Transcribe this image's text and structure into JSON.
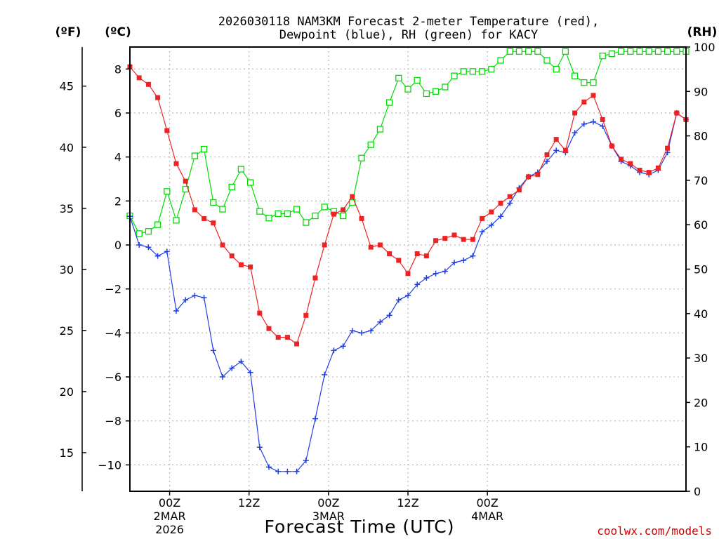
{
  "chart_data": {
    "type": "line",
    "title_line1": "2026030118 NAM3KM Forecast 2-meter Temperature (red),",
    "title_line2": "Dewpoint (blue), RH (green) for KACY",
    "xlabel": "Forecast Time (UTC)",
    "credit": "coolwx.com/models",
    "unit_f": "(ºF)",
    "unit_c": "(ºC)",
    "unit_rh": "(RH)",
    "x_hours_since_start": [
      0,
      84
    ],
    "x_ticks": [
      {
        "hour": 6,
        "label": "00Z",
        "label2": "2MAR",
        "label3": "2026"
      },
      {
        "hour": 18,
        "label": "12Z",
        "label2": "",
        "label3": ""
      },
      {
        "hour": 30,
        "label": "00Z",
        "label2": "3MAR",
        "label3": ""
      },
      {
        "hour": 42,
        "label": "12Z",
        "label2": "",
        "label3": ""
      },
      {
        "hour": 54,
        "label": "00Z",
        "label2": "4MAR",
        "label3": ""
      }
    ],
    "ylim_c": [
      -11.2,
      9.0
    ],
    "ylim_rh": [
      0,
      100
    ],
    "yticks_c": [
      "8",
      "6",
      "4",
      "2",
      "0",
      "−2",
      "−4",
      "−6",
      "−8",
      "−10"
    ],
    "yticks_c_values": [
      8,
      6,
      4,
      2,
      0,
      -2,
      -4,
      -6,
      -8,
      -10
    ],
    "yticks_f": [
      "45",
      "40",
      "35",
      "30",
      "25",
      "20",
      "15"
    ],
    "yticks_f_values": [
      45,
      40,
      35,
      30,
      25,
      20,
      15
    ],
    "yticks_rh": [
      "100",
      "90",
      "80",
      "70",
      "60",
      "50",
      "40",
      "30",
      "20",
      "10",
      "0"
    ],
    "yticks_rh_values": [
      100,
      90,
      80,
      70,
      60,
      50,
      40,
      30,
      20,
      10,
      0
    ],
    "colors": {
      "temperature": "#ee2222",
      "dewpoint": "#1f3fe6",
      "rh": "#00dd00",
      "grid": "#b8b8b8",
      "axis": "#000000"
    },
    "series": [
      {
        "name": "Temperature",
        "unit": "C",
        "values": [
          8.1,
          7.6,
          7.3,
          6.7,
          5.2,
          3.7,
          2.9,
          1.6,
          1.2,
          1.0,
          0.0,
          -0.5,
          -0.9,
          -1.0,
          -3.1,
          -3.8,
          -4.2,
          -4.2,
          -4.5,
          -3.2,
          -1.5,
          0.0,
          1.4,
          1.6,
          2.2,
          1.2,
          -0.1,
          0.0,
          -0.4,
          -0.7,
          -1.3,
          -0.4,
          -0.5,
          0.2,
          0.3,
          0.45,
          0.25,
          0.25,
          1.2,
          1.5,
          1.9,
          2.2,
          2.5,
          3.1,
          3.2,
          4.1,
          4.8,
          4.3,
          6.0,
          6.5,
          6.8,
          5.7,
          4.5,
          3.9,
          3.7,
          3.4,
          3.3,
          3.5,
          4.4,
          6.0,
          5.7
        ]
      },
      {
        "name": "Dewpoint",
        "unit": "C",
        "values": [
          1.3,
          0.0,
          -0.1,
          -0.5,
          -0.3,
          -3.0,
          -2.5,
          -2.3,
          -2.4,
          -4.8,
          -6.0,
          -5.6,
          -5.3,
          -5.8,
          -9.2,
          -10.1,
          -10.3,
          -10.3,
          -10.3,
          -9.8,
          -7.9,
          -5.9,
          -4.8,
          -4.6,
          -3.9,
          -4.0,
          -3.9,
          -3.5,
          -3.2,
          -2.5,
          -2.3,
          -1.8,
          -1.5,
          -1.3,
          -1.2,
          -0.8,
          -0.7,
          -0.5,
          0.6,
          0.9,
          1.3,
          1.9,
          2.6,
          3.1,
          3.3,
          3.8,
          4.3,
          4.2,
          5.1,
          5.5,
          5.6,
          5.4,
          4.5,
          3.8,
          3.6,
          3.3,
          3.2,
          3.4,
          4.2,
          6.0,
          5.7
        ]
      },
      {
        "name": "RH",
        "unit": "%",
        "values": [
          62,
          58,
          58.5,
          60,
          67.5,
          61,
          68,
          75.5,
          77,
          65,
          63.5,
          68.5,
          72.5,
          69.5,
          63,
          61.5,
          62.5,
          62.5,
          63.5,
          60.5,
          62,
          64,
          63,
          62,
          65,
          75,
          78,
          81.5,
          87.5,
          93,
          90.5,
          92.5,
          89.5,
          90,
          91,
          93.5,
          94.5,
          94.5,
          94.5,
          95,
          97,
          99,
          99,
          99,
          99,
          97,
          95,
          99,
          93.5,
          92,
          92,
          98,
          98.5,
          99,
          99,
          99,
          99,
          99,
          99,
          99,
          99
        ]
      }
    ]
  }
}
